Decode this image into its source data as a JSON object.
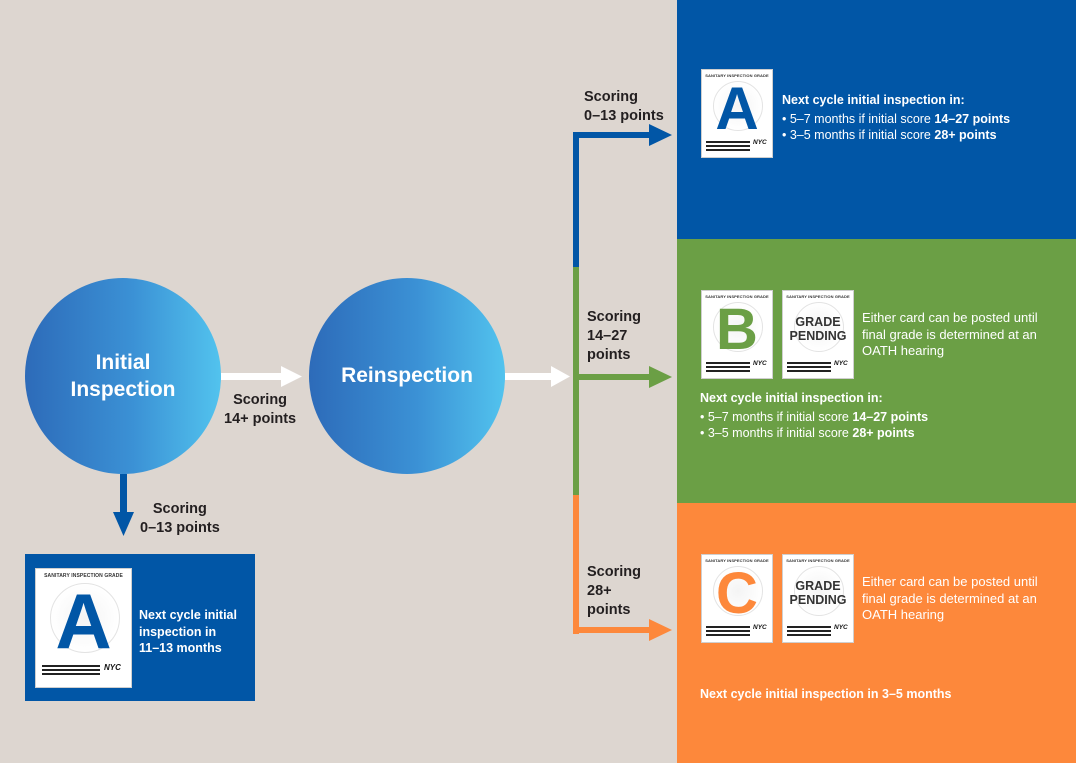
{
  "colors": {
    "background": "#ddd6d0",
    "grade_a_blue": "#0156a6",
    "grade_b_green": "#6b9f45",
    "grade_c_orange": "#fd883b",
    "arrow_white": "#ffffff",
    "circle_gradient_start": "#2d6bb9",
    "circle_gradient_end": "#52c3ee"
  },
  "initial_inspection": {
    "line1": "Initial",
    "line2": "Inspection"
  },
  "reinspection": {
    "label": "Reinspection"
  },
  "edge_initial_to_reinspection": {
    "line1": "Scoring",
    "line2": "14+ points"
  },
  "edge_initial_to_card": {
    "line1": "Scoring",
    "line2": "0–13 points"
  },
  "initial_result_card": {
    "card_header": "SANITARY INSPECTION GRADE",
    "letter": "A",
    "nyc": "NYC",
    "text_line1": "Next cycle initial",
    "text_line2": "inspection in",
    "text_line3": "11–13 months"
  },
  "branch_a": {
    "scoring_line1": "Scoring",
    "scoring_line2": "0–13 points",
    "card_header": "SANITARY INSPECTION GRADE",
    "letter": "A",
    "nyc": "NYC",
    "title": "Next cycle initial inspection in:",
    "bullet1_prefix": "• 5–7 months if initial score ",
    "bullet1_bold": "14–27 points",
    "bullet2_prefix": "• 3–5 months if initial score ",
    "bullet2_bold": "28+ points"
  },
  "branch_b": {
    "scoring_line1": "Scoring",
    "scoring_line2": "14–27",
    "scoring_line3": "points",
    "card_header": "SANITARY INSPECTION GRADE",
    "letter": "B",
    "pending_line1": "GRADE",
    "pending_line2": "PENDING",
    "nyc": "NYC",
    "either_line1": "Either card can be posted until",
    "either_line2": "final grade is determined at an",
    "either_line3": "OATH hearing",
    "title": "Next cycle initial inspection in:",
    "bullet1_prefix": "• 5–7 months if initial score ",
    "bullet1_bold": "14–27 points",
    "bullet2_prefix": "• 3–5 months if initial score ",
    "bullet2_bold": "28+ points"
  },
  "branch_c": {
    "scoring_line1": "Scoring",
    "scoring_line2": "28+",
    "scoring_line3": "points",
    "card_header": "SANITARY INSPECTION GRADE",
    "letter": "C",
    "pending_line1": "GRADE",
    "pending_line2": "PENDING",
    "nyc": "NYC",
    "either_line1": "Either card can be posted until",
    "either_line2": "final grade is determined at an",
    "either_line3": "OATH hearing",
    "next": "Next cycle initial inspection in 3–5 months"
  }
}
